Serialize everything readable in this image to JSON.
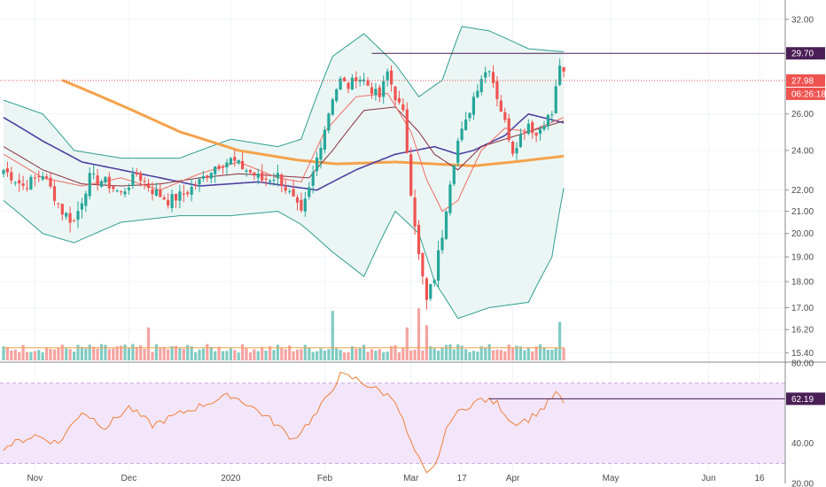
{
  "colors": {
    "up": "#26a69a",
    "down": "#ef5350",
    "vol_up": "#7fcbc2",
    "vol_down": "#f4a3a1",
    "bb_band": "#2e9e8f",
    "bb_fill": "#e9f5f3",
    "ma_slow": "#f4a24a",
    "ma_mid": "#4f3fa0",
    "ma_fast": "#f06b63",
    "ma_basis": "#8a2c3b",
    "resist": "#4a1f55",
    "last": "#ef5350",
    "rsi": "#f0803c",
    "rsi_bg": "#f3e6fb",
    "rsi_band": "#c9a7dd"
  },
  "chart_data": [
    {
      "type": "line",
      "subtype": "candlestick with Bollinger Bands, moving averages and volume",
      "x_ticks": [
        "Nov",
        "Dec",
        "2020",
        "Feb",
        "Mar",
        "17",
        "Apr",
        "May",
        "Jun",
        "16"
      ],
      "y_ticks": [
        "32.00",
        "26.00",
        "24.00",
        "22.00",
        "21.00",
        "20.00",
        "19.00",
        "18.00",
        "17.00",
        "16.20",
        "15.40"
      ],
      "y_scale": "log",
      "ylim": [
        15.2,
        33.0
      ],
      "resistance": 29.7,
      "resistance_label": "29.70",
      "last_price": 27.98,
      "last_price_label": "27.98",
      "countdown_label": "06:26:18",
      "close_anchors": [
        [
          0,
          23.0
        ],
        [
          5,
          22.2
        ],
        [
          10,
          22.8
        ],
        [
          15,
          21.0
        ],
        [
          18,
          20.5
        ],
        [
          22,
          22.6
        ],
        [
          26,
          22.4
        ],
        [
          30,
          21.8
        ],
        [
          34,
          22.8
        ],
        [
          38,
          22.0
        ],
        [
          42,
          21.5
        ],
        [
          46,
          21.8
        ],
        [
          50,
          22.4
        ],
        [
          54,
          23.2
        ],
        [
          58,
          23.5
        ],
        [
          62,
          23.0
        ],
        [
          66,
          22.5
        ],
        [
          70,
          22.7
        ],
        [
          74,
          21.5
        ],
        [
          76,
          20.8
        ],
        [
          78,
          22.0
        ],
        [
          80,
          23.6
        ],
        [
          82,
          25.2
        ],
        [
          84,
          27.0
        ],
        [
          86,
          28.0
        ],
        [
          88,
          27.6
        ],
        [
          90,
          28.2
        ],
        [
          92,
          28.0
        ],
        [
          94,
          27.4
        ],
        [
          96,
          27.0
        ],
        [
          98,
          28.5
        ],
        [
          100,
          27.0
        ],
        [
          102,
          26.0
        ],
        [
          104,
          22.0
        ],
        [
          106,
          19.0
        ],
        [
          108,
          17.2
        ],
        [
          110,
          18.2
        ],
        [
          112,
          20.0
        ],
        [
          114,
          22.5
        ],
        [
          116,
          24.5
        ],
        [
          118,
          25.5
        ],
        [
          120,
          27.0
        ],
        [
          122,
          28.2
        ],
        [
          124,
          28.8
        ],
        [
          126,
          27.0
        ],
        [
          128,
          25.5
        ],
        [
          130,
          24.0
        ],
        [
          132,
          24.8
        ],
        [
          134,
          25.5
        ],
        [
          136,
          24.8
        ],
        [
          138,
          25.6
        ],
        [
          140,
          26.0
        ],
        [
          142,
          29.0
        ],
        [
          143,
          28.3
        ]
      ],
      "bb_upper": [
        [
          0,
          26.8
        ],
        [
          10,
          26.0
        ],
        [
          18,
          24.0
        ],
        [
          30,
          23.6
        ],
        [
          45,
          23.6
        ],
        [
          58,
          24.6
        ],
        [
          70,
          24.2
        ],
        [
          76,
          24.6
        ],
        [
          84,
          29.5
        ],
        [
          92,
          31.0
        ],
        [
          100,
          29.0
        ],
        [
          106,
          27.0
        ],
        [
          112,
          28.0
        ],
        [
          117,
          31.5
        ],
        [
          124,
          31.2
        ],
        [
          134,
          30.0
        ],
        [
          143,
          29.8
        ]
      ],
      "bb_lower": [
        [
          0,
          21.5
        ],
        [
          10,
          20.0
        ],
        [
          18,
          19.6
        ],
        [
          30,
          20.5
        ],
        [
          45,
          20.8
        ],
        [
          58,
          20.8
        ],
        [
          70,
          21.0
        ],
        [
          76,
          20.4
        ],
        [
          84,
          19.2
        ],
        [
          92,
          18.2
        ],
        [
          100,
          21.0
        ],
        [
          106,
          20.0
        ],
        [
          110,
          18.0
        ],
        [
          116,
          16.6
        ],
        [
          124,
          17.0
        ],
        [
          134,
          17.2
        ],
        [
          140,
          19.0
        ],
        [
          143,
          22.1
        ]
      ],
      "ma_slow": [
        [
          15,
          28.0
        ],
        [
          30,
          26.5
        ],
        [
          45,
          25.0
        ],
        [
          60,
          24.0
        ],
        [
          75,
          23.5
        ],
        [
          85,
          23.3
        ],
        [
          100,
          23.4
        ],
        [
          110,
          23.3
        ],
        [
          120,
          23.2
        ],
        [
          130,
          23.4
        ],
        [
          143,
          23.7
        ]
      ],
      "ma_mid": [
        [
          0,
          25.8
        ],
        [
          10,
          24.5
        ],
        [
          20,
          23.4
        ],
        [
          35,
          22.8
        ],
        [
          50,
          22.2
        ],
        [
          65,
          22.4
        ],
        [
          80,
          22.0
        ],
        [
          90,
          23.0
        ],
        [
          100,
          23.8
        ],
        [
          110,
          24.2
        ],
        [
          116,
          23.8
        ],
        [
          120,
          24.0
        ],
        [
          128,
          24.8
        ],
        [
          134,
          26.0
        ],
        [
          143,
          25.5
        ]
      ],
      "ma_fast": [
        [
          0,
          23.8
        ],
        [
          10,
          22.6
        ],
        [
          20,
          22.2
        ],
        [
          30,
          22.6
        ],
        [
          40,
          22.0
        ],
        [
          50,
          22.8
        ],
        [
          60,
          23.4
        ],
        [
          70,
          22.6
        ],
        [
          76,
          22.4
        ],
        [
          82,
          25.0
        ],
        [
          90,
          27.0
        ],
        [
          98,
          27.2
        ],
        [
          104,
          25.0
        ],
        [
          108,
          22.5
        ],
        [
          112,
          21.0
        ],
        [
          116,
          21.5
        ],
        [
          122,
          24.0
        ],
        [
          128,
          25.2
        ],
        [
          134,
          25.0
        ],
        [
          143,
          25.8
        ]
      ],
      "ma_basis": [
        [
          0,
          24.2
        ],
        [
          10,
          23.0
        ],
        [
          20,
          22.3
        ],
        [
          30,
          22.2
        ],
        [
          40,
          22.3
        ],
        [
          50,
          22.6
        ],
        [
          60,
          22.8
        ],
        [
          70,
          22.7
        ],
        [
          78,
          22.6
        ],
        [
          84,
          24.0
        ],
        [
          92,
          26.2
        ],
        [
          100,
          26.4
        ],
        [
          106,
          25.0
        ],
        [
          110,
          23.8
        ],
        [
          116,
          23.0
        ],
        [
          122,
          24.2
        ],
        [
          128,
          24.6
        ],
        [
          134,
          25.0
        ],
        [
          143,
          25.6
        ]
      ],
      "volume_spikes": [
        [
          37,
          6.0
        ],
        [
          84,
          9.0
        ],
        [
          103,
          6.0
        ],
        [
          106,
          9.5
        ],
        [
          108,
          6.4
        ],
        [
          142,
          7.0
        ]
      ]
    },
    {
      "type": "line",
      "subtype": "RSI",
      "y_ticks": [
        "80.00",
        "62.19",
        "40.00",
        "20.00"
      ],
      "ylim": [
        20,
        80
      ],
      "band": [
        30,
        70
      ],
      "last_value": 62.19,
      "last_label": "62.19",
      "level_line": 62.19,
      "anchors": [
        [
          0,
          38
        ],
        [
          8,
          44
        ],
        [
          14,
          40
        ],
        [
          20,
          56
        ],
        [
          26,
          48
        ],
        [
          32,
          58
        ],
        [
          38,
          49
        ],
        [
          44,
          54
        ],
        [
          52,
          60
        ],
        [
          58,
          64
        ],
        [
          62,
          60
        ],
        [
          68,
          52
        ],
        [
          74,
          42
        ],
        [
          80,
          55
        ],
        [
          86,
          74
        ],
        [
          90,
          72
        ],
        [
          96,
          66
        ],
        [
          100,
          62
        ],
        [
          104,
          40
        ],
        [
          108,
          24
        ],
        [
          110,
          28
        ],
        [
          114,
          52
        ],
        [
          118,
          58
        ],
        [
          122,
          62
        ],
        [
          126,
          60
        ],
        [
          130,
          50
        ],
        [
          134,
          52
        ],
        [
          138,
          58
        ],
        [
          141,
          65
        ],
        [
          143,
          60
        ]
      ]
    }
  ]
}
